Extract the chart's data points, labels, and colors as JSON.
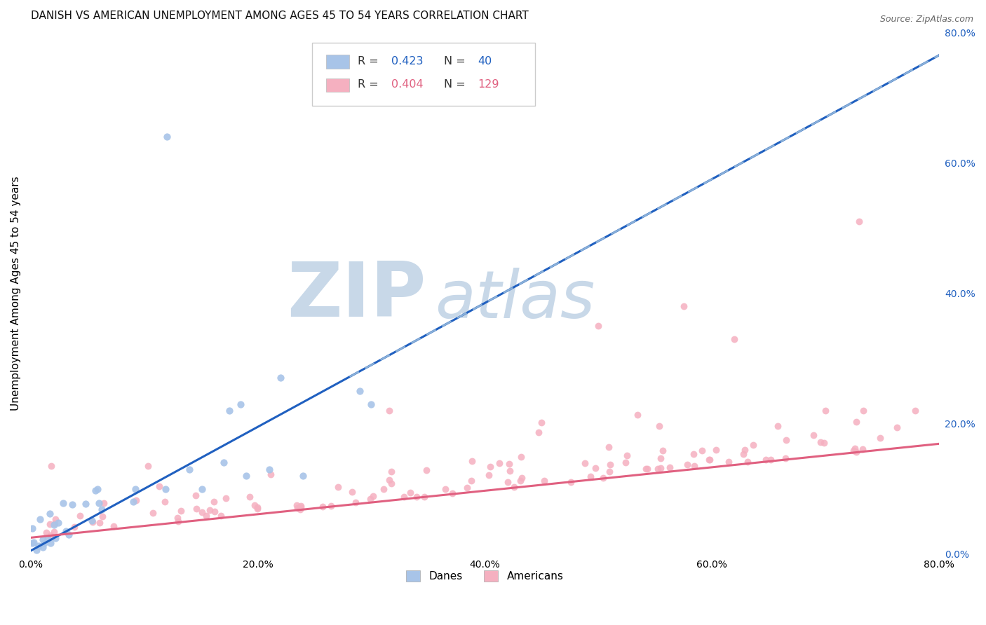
{
  "title": "DANISH VS AMERICAN UNEMPLOYMENT AMONG AGES 45 TO 54 YEARS CORRELATION CHART",
  "source": "Source: ZipAtlas.com",
  "ylabel": "Unemployment Among Ages 45 to 54 years",
  "xlim": [
    0.0,
    0.8
  ],
  "ylim": [
    0.0,
    0.8
  ],
  "xtick_values": [
    0.0,
    0.2,
    0.4,
    0.6,
    0.8
  ],
  "xtick_labels": [
    "0.0%",
    "20.0%",
    "40.0%",
    "60.0%",
    "80.0%"
  ],
  "ytick_values_right": [
    0.0,
    0.2,
    0.4,
    0.6,
    0.8
  ],
  "ytick_labels_right": [
    "0.0%",
    "20.0%",
    "40.0%",
    "60.0%",
    "80.0%"
  ],
  "danes_R": 0.423,
  "danes_N": 40,
  "americans_R": 0.404,
  "americans_N": 129,
  "danes_scatter_color": "#a8c4e8",
  "americans_scatter_color": "#f5b0c0",
  "danes_line_color": "#2060c0",
  "americans_line_color": "#e06080",
  "background_color": "#ffffff",
  "grid_color": "#d0d0d0",
  "watermark_zip_color": "#c8d8e8",
  "watermark_atlas_color": "#c8d8e8",
  "legend_danes_label": "Danes",
  "legend_americans_label": "Americans",
  "title_fontsize": 11,
  "ylabel_fontsize": 11,
  "tick_fontsize": 10,
  "legend_fontsize": 12,
  "right_tick_color": "#2060c0",
  "danes_trendline_slope": 0.95,
  "danes_trendline_intercept": 0.005,
  "americans_trendline_slope": 0.18,
  "americans_trendline_intercept": 0.025
}
